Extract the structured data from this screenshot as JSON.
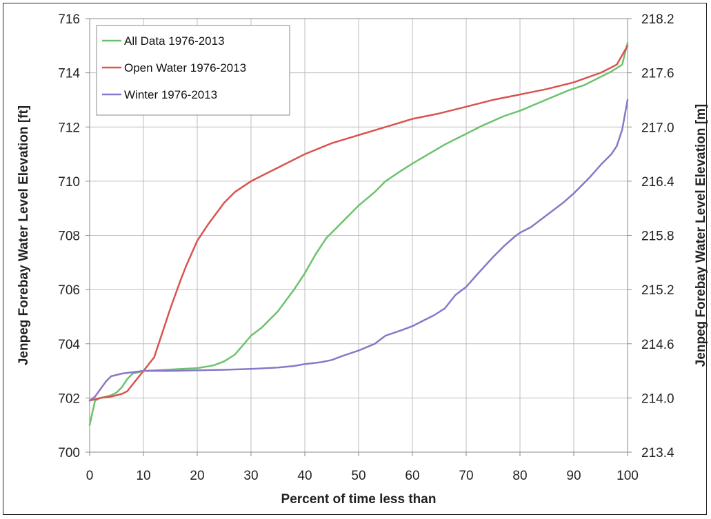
{
  "chart_data": {
    "type": "line",
    "xlabel": "Percent of time less than",
    "ylabel": "Jenpeg Forebay Water Level Elevation [ft]",
    "y2label": "Jenpeg Forebay Water Level Elevation [m]",
    "xlim": [
      0,
      100
    ],
    "ylim": [
      700,
      716
    ],
    "y2lim": [
      213.4,
      218.2
    ],
    "xticks": [
      "0",
      "10",
      "20",
      "30",
      "40",
      "50",
      "60",
      "70",
      "80",
      "90",
      "100"
    ],
    "xtick_values": [
      0,
      10,
      20,
      30,
      40,
      50,
      60,
      70,
      80,
      90,
      100
    ],
    "yticks": [
      "700",
      "702",
      "704",
      "706",
      "708",
      "710",
      "712",
      "714",
      "716"
    ],
    "ytick_values": [
      700,
      702,
      704,
      706,
      708,
      710,
      712,
      714,
      716
    ],
    "y2ticks": [
      "213.4",
      "214.0",
      "214.6",
      "215.2",
      "215.8",
      "216.4",
      "217.0",
      "217.6",
      "218.2"
    ],
    "grid": true,
    "legend_position": "top-left",
    "series": [
      {
        "name": "All Data 1976-2013",
        "color": "#6cc26c",
        "x": [
          0,
          1,
          2,
          4,
          5,
          6,
          7,
          8,
          10,
          15,
          20,
          23,
          25,
          27,
          30,
          32,
          35,
          38,
          40,
          42,
          44,
          46,
          48,
          50,
          53,
          55,
          58,
          60,
          63,
          66,
          70,
          73,
          77,
          80,
          83,
          86,
          89,
          92,
          95,
          97,
          99,
          100
        ],
        "y": [
          701.0,
          701.9,
          702.0,
          702.1,
          702.2,
          702.4,
          702.7,
          702.9,
          703.0,
          703.05,
          703.1,
          703.2,
          703.35,
          703.6,
          704.3,
          704.6,
          705.2,
          706.0,
          706.6,
          707.3,
          707.9,
          708.3,
          708.7,
          709.1,
          709.6,
          710.0,
          710.4,
          710.65,
          711.0,
          711.35,
          711.75,
          712.05,
          712.4,
          712.6,
          712.85,
          713.1,
          713.35,
          713.55,
          713.85,
          714.05,
          714.3,
          715.1
        ]
      },
      {
        "name": "Open Water 1976-2013",
        "color": "#d9534f",
        "x": [
          0,
          1,
          2,
          4,
          6,
          7,
          8,
          10,
          12,
          13,
          15,
          17,
          18,
          20,
          22,
          25,
          27,
          30,
          35,
          40,
          45,
          50,
          55,
          60,
          65,
          70,
          75,
          80,
          85,
          90,
          95,
          98,
          100
        ],
        "y": [
          701.9,
          701.95,
          702.0,
          702.05,
          702.15,
          702.25,
          702.5,
          703.0,
          703.5,
          704.1,
          705.3,
          706.4,
          706.9,
          707.8,
          708.4,
          709.2,
          709.6,
          710.0,
          710.5,
          711.0,
          711.4,
          711.7,
          712.0,
          712.3,
          712.5,
          712.75,
          713.0,
          713.2,
          713.4,
          713.65,
          714.0,
          714.3,
          715.0
        ]
      },
      {
        "name": "Winter 1976-2013",
        "color": "#8a76c8",
        "x": [
          0,
          1,
          3,
          4,
          6,
          8,
          10,
          15,
          20,
          25,
          30,
          35,
          38,
          40,
          43,
          45,
          47,
          50,
          53,
          55,
          58,
          60,
          62,
          64,
          66,
          68,
          70,
          72,
          75,
          77,
          79,
          80,
          82,
          85,
          88,
          90,
          93,
          95,
          96,
          97,
          98,
          99,
          100
        ],
        "y": [
          701.9,
          702.05,
          702.6,
          702.8,
          702.9,
          702.95,
          703.0,
          703.0,
          703.02,
          703.04,
          703.07,
          703.12,
          703.18,
          703.25,
          703.32,
          703.4,
          703.55,
          703.75,
          704.0,
          704.3,
          704.5,
          704.65,
          704.85,
          705.05,
          705.3,
          705.8,
          706.1,
          706.55,
          707.2,
          707.6,
          707.95,
          708.1,
          708.3,
          708.75,
          709.2,
          709.55,
          710.15,
          710.6,
          710.8,
          711.0,
          711.3,
          711.9,
          713.0
        ]
      }
    ]
  }
}
